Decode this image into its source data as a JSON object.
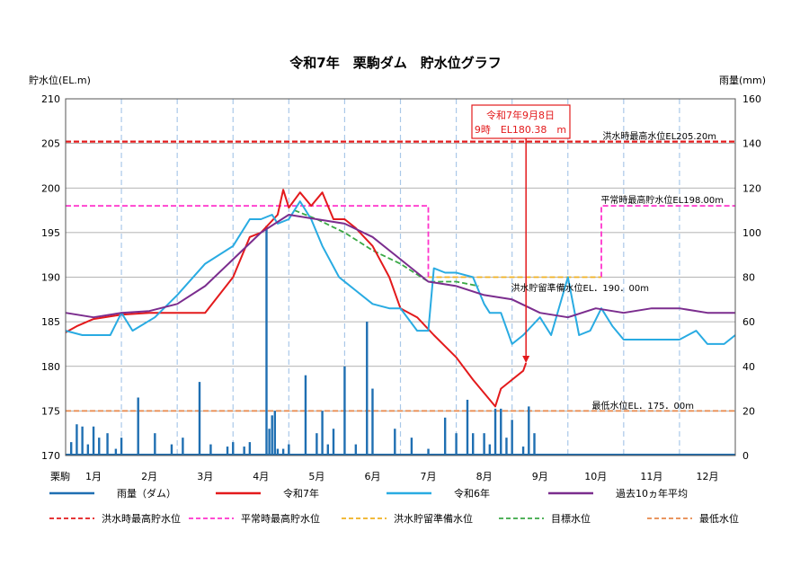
{
  "chart_data": {
    "type": "line",
    "title": "令和7年　栗駒ダム　貯水位グラフ",
    "ylabel_left": "貯水位(EL.m)",
    "ylabel_right": "雨量(mm)",
    "x_corner_label": "栗駒",
    "ylim_left": [
      170,
      210
    ],
    "ylim_right": [
      0,
      160
    ],
    "yticks_left": [
      170,
      175,
      180,
      185,
      190,
      195,
      200,
      205,
      210
    ],
    "yticks_right": [
      0,
      20,
      40,
      60,
      80,
      100,
      120,
      140,
      160
    ],
    "categories": [
      "1月",
      "2月",
      "3月",
      "4月",
      "5月",
      "6月",
      "7月",
      "8月",
      "9月",
      "10月",
      "11月",
      "12月"
    ],
    "x_unit": "month (0 = start of 1月, 12 = end of 12月)",
    "grid": true,
    "legend_position": "bottom",
    "annotation": {
      "line1": "令和7年9月8日",
      "line2": "9時　EL180.38　m",
      "x": 8.25,
      "y": 180.38
    },
    "ref_labels": {
      "flood_max": "洪水時最高水位EL205.20m",
      "normal_max": "平常時最高貯水位EL198.00m",
      "flood_reserve": "洪水貯留準備水位EL．190．00m",
      "min_level": "最低水位EL．175．00m"
    },
    "series": [
      {
        "name": "令和7年",
        "color": "#e31a1c",
        "axis": "left",
        "x": [
          0,
          0.2,
          0.5,
          1,
          1.5,
          2,
          2.5,
          3,
          3.3,
          3.5,
          3.8,
          3.9,
          4.0,
          4.2,
          4.4,
          4.6,
          4.8,
          5.0,
          5.2,
          5.5,
          5.8,
          6.0,
          6.3,
          6.6,
          7.0,
          7.3,
          7.5,
          7.7,
          7.8,
          7.9,
          8.0,
          8.2,
          8.25
        ],
        "y": [
          183.8,
          184.5,
          185.3,
          185.8,
          186.0,
          186.0,
          186.0,
          190.0,
          194.5,
          195.0,
          197.0,
          199.8,
          197.8,
          199.5,
          198.0,
          199.5,
          196.5,
          196.5,
          195.5,
          193.5,
          190.0,
          186.5,
          185.5,
          183.5,
          181.0,
          178.5,
          177.0,
          175.5,
          177.5,
          178.0,
          178.5,
          179.5,
          180.38
        ]
      },
      {
        "name": "令和6年",
        "color": "#29abe2",
        "axis": "left",
        "x": [
          0,
          0.3,
          0.8,
          1.0,
          1.2,
          1.6,
          2.0,
          2.5,
          3.0,
          3.3,
          3.5,
          3.7,
          3.8,
          4.0,
          4.2,
          4.4,
          4.6,
          4.9,
          5.2,
          5.5,
          5.8,
          6.0,
          6.3,
          6.5,
          6.6,
          6.8,
          7.0,
          7.3,
          7.5,
          7.6,
          7.8,
          8.0,
          8.2,
          8.5,
          8.7,
          9.0,
          9.2,
          9.4,
          9.6,
          9.8,
          10.0,
          10.5,
          11.0,
          11.3,
          11.5,
          11.8,
          12.0
        ],
        "y": [
          184.0,
          183.5,
          183.5,
          186.0,
          184.0,
          185.5,
          188.0,
          191.5,
          193.5,
          196.5,
          196.5,
          197.0,
          196.0,
          196.5,
          198.5,
          196.5,
          193.5,
          190.0,
          188.5,
          187.0,
          186.5,
          186.5,
          184.0,
          184.0,
          191.0,
          190.5,
          190.5,
          190.0,
          187.0,
          186.0,
          186.0,
          182.5,
          183.5,
          185.5,
          183.5,
          190.0,
          183.5,
          184.0,
          186.5,
          184.5,
          183.0,
          183.0,
          183.0,
          184.0,
          182.5,
          182.5,
          183.5
        ]
      },
      {
        "name": "過去10ヵ年平均",
        "color": "#7b2d8e",
        "axis": "left",
        "x": [
          0,
          0.5,
          1.0,
          1.5,
          2.0,
          2.5,
          3.0,
          3.5,
          4.0,
          4.5,
          5.0,
          5.5,
          6.0,
          6.5,
          7.0,
          7.5,
          8.0,
          8.5,
          9.0,
          9.5,
          10.0,
          10.5,
          11.0,
          11.5,
          12.0
        ],
        "y": [
          186.0,
          185.5,
          186.0,
          186.2,
          187.0,
          189.0,
          192.0,
          195.0,
          197.0,
          196.5,
          196.0,
          194.5,
          192.0,
          189.5,
          189.0,
          188.0,
          187.5,
          186.0,
          185.5,
          186.5,
          186.0,
          186.5,
          186.5,
          186.0,
          186.0
        ]
      },
      {
        "name": "目標水位",
        "color": "#3aa845",
        "axis": "left",
        "dash": true,
        "x": [
          4.1,
          4.5,
          5.0,
          5.5,
          6.0,
          6.5,
          7.0,
          7.4
        ],
        "y": [
          197.5,
          196.5,
          195.0,
          193.0,
          191.5,
          189.5,
          189.5,
          189.0
        ]
      },
      {
        "name": "洪水時最高水位",
        "color": "#e31a1c",
        "axis": "left",
        "dash": true,
        "x": [
          0,
          12
        ],
        "y": [
          205.2,
          205.2
        ]
      },
      {
        "name": "平常時最高貯水位",
        "color": "#ff33cc",
        "axis": "left",
        "dash": true,
        "x": [
          0,
          6.5,
          6.5
        ],
        "y": [
          198.0,
          198.0,
          190.0
        ],
        "x2": [
          9.6,
          9.6,
          12
        ],
        "y2": [
          190.0,
          198.0,
          198.0
        ]
      },
      {
        "name": "洪水貯留準備水位",
        "color": "#f0b020",
        "axis": "left",
        "dash": true,
        "x": [
          6.5,
          9.6
        ],
        "y": [
          190.0,
          190.0
        ]
      },
      {
        "name": "最低水位",
        "color": "#e8874a",
        "axis": "left",
        "dash": true,
        "x": [
          0,
          12
        ],
        "y": [
          175.0,
          175.0
        ]
      },
      {
        "name": "雨量（ダム）",
        "color": "#1f6fb2",
        "axis": "right",
        "type": "bar",
        "x": [
          0.1,
          0.2,
          0.3,
          0.4,
          0.5,
          0.6,
          0.75,
          0.9,
          1.0,
          1.3,
          1.6,
          1.9,
          2.1,
          2.4,
          2.6,
          2.9,
          3.0,
          3.2,
          3.3,
          3.6,
          3.65,
          3.7,
          3.75,
          3.8,
          3.9,
          4.0,
          4.3,
          4.5,
          4.6,
          4.7,
          4.8,
          5.0,
          5.2,
          5.4,
          5.5,
          5.9,
          6.2,
          6.5,
          6.8,
          7.0,
          7.2,
          7.3,
          7.5,
          7.6,
          7.7,
          7.8,
          7.9,
          8.0,
          8.2,
          8.3,
          8.4
        ],
        "values": [
          6,
          14,
          13,
          5,
          13,
          8,
          10,
          3,
          8,
          26,
          10,
          5,
          8,
          33,
          5,
          4,
          6,
          4,
          6,
          103,
          12,
          18,
          20,
          3,
          3,
          5,
          36,
          10,
          20,
          5,
          12,
          40,
          5,
          60,
          30,
          12,
          8,
          3,
          17,
          10,
          25,
          10,
          10,
          5,
          21,
          21,
          8,
          16,
          4,
          22,
          10
        ]
      }
    ],
    "legend": [
      {
        "name": "雨量（ダム）",
        "color": "#1f6fb2",
        "dash": false
      },
      {
        "name": "令和7年",
        "color": "#e31a1c",
        "dash": false
      },
      {
        "name": "令和6年",
        "color": "#29abe2",
        "dash": false
      },
      {
        "name": "過去10ヵ年平均",
        "color": "#7b2d8e",
        "dash": false
      },
      {
        "name": "洪水時最高貯水位",
        "color": "#e31a1c",
        "dash": true
      },
      {
        "name": "平常時最高貯水位",
        "color": "#ff33cc",
        "dash": true
      },
      {
        "name": "洪水貯留準備水位",
        "color": "#f0b020",
        "dash": true
      },
      {
        "name": "目標水位",
        "color": "#3aa845",
        "dash": true
      },
      {
        "name": "最低水位",
        "color": "#e8874a",
        "dash": true
      }
    ]
  }
}
